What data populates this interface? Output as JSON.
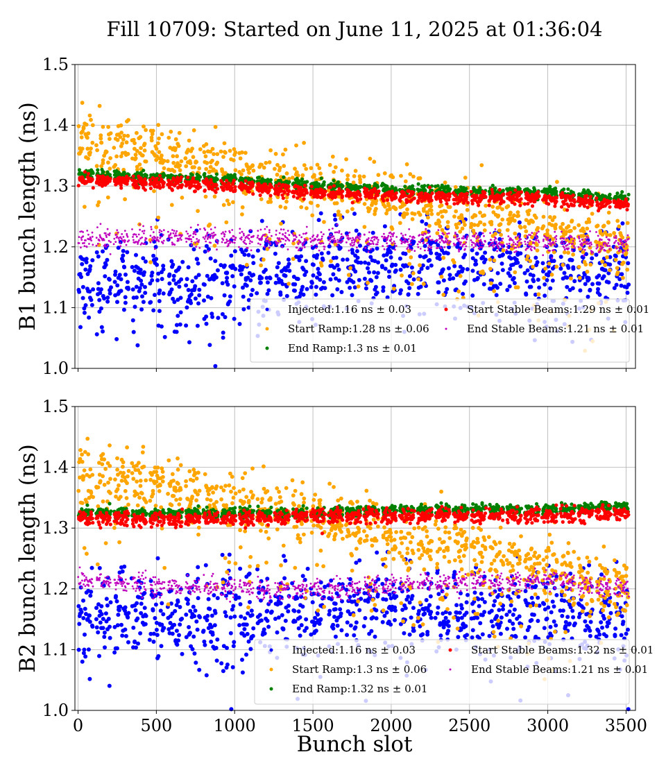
{
  "figure_title": "Fill 10709: Started on June 11, 2025 at 01:36:04",
  "shared_xlabel": "Bunch slot",
  "colors": {
    "Injected": "#0000ff",
    "Start Ramp": "#ffa500",
    "End Ramp": "#008000",
    "Start Stable Beams": "#ff0000",
    "End Stable Beams": "#bf00bf"
  },
  "chart_data": [
    {
      "type": "scatter",
      "title": "",
      "xlabel": "",
      "ylabel": "B1 bunch length (ns)",
      "xlim": [
        -20,
        3560
      ],
      "ylim": [
        1.0,
        1.5
      ],
      "x_ticks": [
        0,
        500,
        1000,
        1500,
        2000,
        2500,
        3000,
        3500
      ],
      "y_ticks": [
        "1.0",
        "1.1",
        "1.2",
        "1.3",
        "1.4",
        "1.5"
      ],
      "grid": true,
      "legend_placement": "lower-right",
      "x_range_note_slots": [
        0,
        3430
      ],
      "series": [
        {
          "name": "Injected",
          "legend": "Injected:1.16 ns ± 0.03",
          "trend_x": [
            0,
            500,
            1000,
            1500,
            2000,
            2500,
            3000,
            3430
          ],
          "trend_y": [
            1.14,
            1.14,
            1.15,
            1.16,
            1.17,
            1.17,
            1.16,
            1.16
          ],
          "spread": 0.035
        },
        {
          "name": "Start Ramp",
          "legend": "Start Ramp:1.28 ns ± 0.06",
          "trend_x": [
            0,
            500,
            1000,
            1500,
            2000,
            2500,
            3000,
            3430
          ],
          "trend_y": [
            1.38,
            1.35,
            1.32,
            1.3,
            1.28,
            1.25,
            1.22,
            1.2
          ],
          "spread": 0.025
        },
        {
          "name": "End Ramp",
          "legend": "End Ramp:1.3 ns ± 0.01",
          "trend_x": [
            0,
            500,
            1000,
            1500,
            2000,
            2500,
            3000,
            3430
          ],
          "trend_y": [
            1.32,
            1.315,
            1.31,
            1.3,
            1.295,
            1.29,
            1.29,
            1.28
          ],
          "spread": 0.004
        },
        {
          "name": "Start Stable Beams",
          "legend": "Start Stable Beams:1.29 ns ± 0.01",
          "trend_x": [
            0,
            500,
            1000,
            1500,
            2000,
            2500,
            3000,
            3430
          ],
          "trend_y": [
            1.31,
            1.305,
            1.3,
            1.29,
            1.285,
            1.28,
            1.28,
            1.27
          ],
          "spread": 0.005
        },
        {
          "name": "End Stable Beams",
          "legend": "End Stable Beams:1.21 ns ± 0.01",
          "trend_x": [
            0,
            500,
            1000,
            1500,
            2000,
            2500,
            3000,
            3430
          ],
          "trend_y": [
            1.215,
            1.215,
            1.215,
            1.21,
            1.21,
            1.21,
            1.205,
            1.205
          ],
          "spread": 0.008
        }
      ]
    },
    {
      "type": "scatter",
      "title": "",
      "xlabel": "Bunch slot",
      "ylabel": "B2 bunch length (ns)",
      "xlim": [
        -20,
        3560
      ],
      "ylim": [
        1.0,
        1.5
      ],
      "x_ticks": [
        0,
        500,
        1000,
        1500,
        2000,
        2500,
        3000,
        3500
      ],
      "y_ticks": [
        "1.0",
        "1.1",
        "1.2",
        "1.3",
        "1.4",
        "1.5"
      ],
      "grid": true,
      "legend_placement": "lower-right",
      "series": [
        {
          "name": "Injected",
          "legend": "Injected:1.16 ns ± 0.03",
          "trend_x": [
            0,
            500,
            1000,
            1500,
            2000,
            2500,
            3000,
            3430
          ],
          "trend_y": [
            1.15,
            1.16,
            1.15,
            1.16,
            1.17,
            1.16,
            1.16,
            1.16
          ],
          "spread": 0.035
        },
        {
          "name": "Start Ramp",
          "legend": "Start Ramp:1.3 ns ± 0.06",
          "trend_x": [
            0,
            500,
            1000,
            1500,
            2000,
            2500,
            3000,
            3430
          ],
          "trend_y": [
            1.39,
            1.37,
            1.34,
            1.32,
            1.29,
            1.26,
            1.23,
            1.2
          ],
          "spread": 0.025
        },
        {
          "name": "End Ramp",
          "legend": "End Ramp:1.32 ns ± 0.01",
          "trend_x": [
            0,
            500,
            1000,
            1500,
            2000,
            2500,
            3000,
            3430
          ],
          "trend_y": [
            1.325,
            1.325,
            1.325,
            1.325,
            1.33,
            1.33,
            1.33,
            1.335
          ],
          "spread": 0.004
        },
        {
          "name": "Start Stable Beams",
          "legend": "Start Stable Beams:1.32 ns ± 0.01",
          "trend_x": [
            0,
            500,
            1000,
            1500,
            2000,
            2500,
            3000,
            3430
          ],
          "trend_y": [
            1.315,
            1.315,
            1.315,
            1.32,
            1.32,
            1.32,
            1.32,
            1.325
          ],
          "spread": 0.006
        },
        {
          "name": "End Stable Beams",
          "legend": "End Stable Beams:1.21 ns ± 0.01",
          "trend_x": [
            0,
            500,
            1000,
            1500,
            2000,
            2500,
            3000,
            3430
          ],
          "trend_y": [
            1.215,
            1.205,
            1.2,
            1.2,
            1.205,
            1.21,
            1.215,
            1.2
          ],
          "spread": 0.008
        }
      ]
    }
  ]
}
